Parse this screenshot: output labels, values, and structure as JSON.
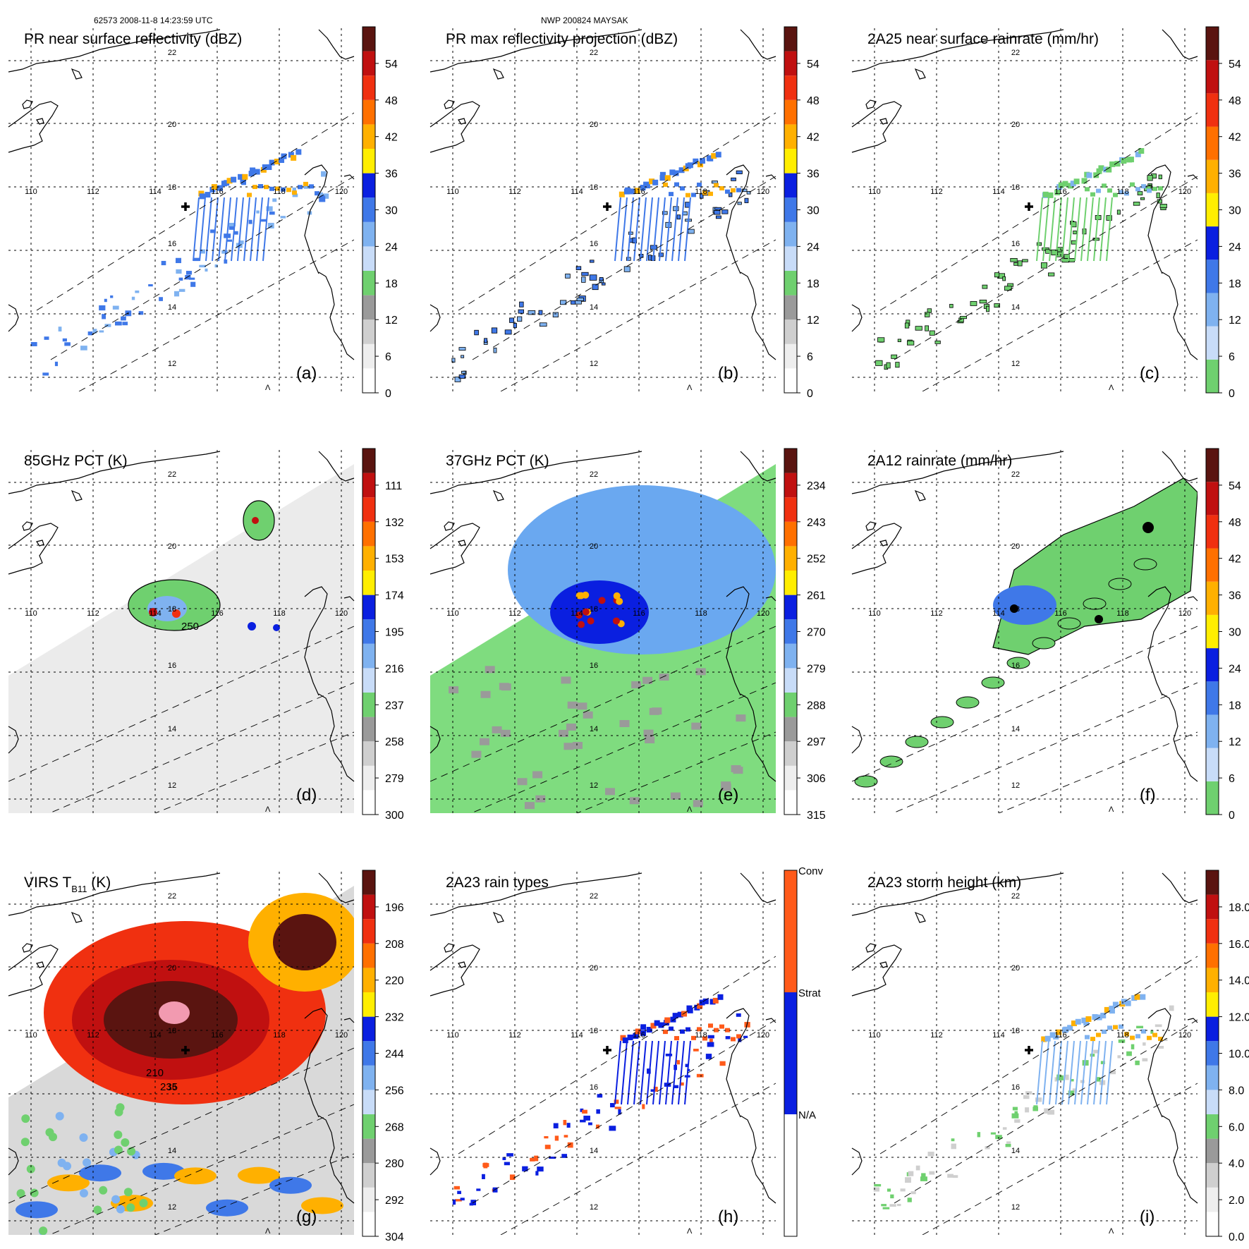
{
  "header": {
    "orbit_time": "62573 2008-11-8 14:23:59 UTC",
    "storm": "NWP 200824 MAYSAK"
  },
  "chart_data": [
    {
      "type": "heatmap",
      "title": "PR near surface reflectivity (dBZ)",
      "panel_label": "(a)",
      "field": "swath",
      "colorbar": {
        "ticks": [
          "0",
          "6",
          "12",
          "18",
          "24",
          "30",
          "36",
          "42",
          "48",
          "54"
        ],
        "colors": [
          "#ffffff",
          "#eeeeee",
          "#cfcfcf",
          "#9a9a9a",
          "#6fd06f",
          "#c8dcf8",
          "#7fb2f0",
          "#3f78e8",
          "#0a1fe0",
          "#ffee00",
          "#ffb000",
          "#ff7000",
          "#f03010",
          "#c01010",
          "#5a1410"
        ]
      },
      "lat_labels": [
        "22",
        "20",
        "18",
        "16",
        "14",
        "12"
      ],
      "lon_labels": [
        "110",
        "112",
        "114",
        "116",
        "118",
        "120"
      ],
      "show_center_cross": true,
      "extra_labels": [],
      "mark": "Λ"
    },
    {
      "type": "heatmap",
      "title": "PR max reflectivity projection (dBZ)",
      "panel_label": "(b)",
      "field": "swath",
      "colorbar": {
        "ticks": [
          "0",
          "6",
          "12",
          "18",
          "24",
          "30",
          "36",
          "42",
          "48",
          "54"
        ],
        "colors": [
          "#ffffff",
          "#eeeeee",
          "#cfcfcf",
          "#9a9a9a",
          "#6fd06f",
          "#c8dcf8",
          "#7fb2f0",
          "#3f78e8",
          "#0a1fe0",
          "#ffee00",
          "#ffb000",
          "#ff7000",
          "#f03010",
          "#c01010",
          "#5a1410"
        ]
      },
      "lat_labels": [
        "22",
        "20",
        "18",
        "16",
        "14",
        "12"
      ],
      "lon_labels": [
        "110",
        "112",
        "114",
        "116",
        "118",
        "120"
      ],
      "show_center_cross": true,
      "extra_labels": [],
      "mark": "Λ"
    },
    {
      "type": "heatmap",
      "title": "2A25 near surface rainrate (mm/hr)",
      "panel_label": "(c)",
      "field": "swath",
      "colorbar": {
        "ticks": [
          "0",
          "6",
          "12",
          "18",
          "24",
          "30",
          "36",
          "42",
          "48",
          "54"
        ],
        "colors": [
          "#6fd06f",
          "#c8dcf8",
          "#7fb2f0",
          "#3f78e8",
          "#0a1fe0",
          "#ffee00",
          "#ffb000",
          "#ff7000",
          "#f03010",
          "#c01010",
          "#5a1410"
        ]
      },
      "lat_labels": [
        "22",
        "20",
        "18",
        "16",
        "14",
        "12"
      ],
      "lon_labels": [
        "110",
        "112",
        "114",
        "116",
        "118",
        "120"
      ],
      "show_center_cross": true,
      "extra_labels": [],
      "mark": "Λ"
    },
    {
      "type": "heatmap",
      "title": "85GHz PCT (K)",
      "panel_label": "(d)",
      "field": "wide",
      "colorbar": {
        "ticks": [
          "300",
          "279",
          "258",
          "237",
          "216",
          "195",
          "174",
          "153",
          "132",
          "111"
        ],
        "colors": [
          "#ffffff",
          "#eeeeee",
          "#cfcfcf",
          "#9a9a9a",
          "#6fd06f",
          "#c8dcf8",
          "#7fb2f0",
          "#3f78e8",
          "#0a1fe0",
          "#ffee00",
          "#ffb000",
          "#ff7000",
          "#f03010",
          "#c01010",
          "#5a1410"
        ]
      },
      "lat_labels": [
        "22",
        "20",
        "18",
        "16",
        "14",
        "12"
      ],
      "lon_labels": [
        "110",
        "112",
        "114",
        "116",
        "118",
        "120"
      ],
      "show_center_cross": false,
      "extra_labels": [
        "250"
      ],
      "mark": "Λ"
    },
    {
      "type": "heatmap",
      "title": "37GHz PCT (K)",
      "panel_label": "(e)",
      "field": "wide",
      "colorbar": {
        "ticks": [
          "315",
          "306",
          "297",
          "288",
          "279",
          "270",
          "261",
          "252",
          "243",
          "234"
        ],
        "colors": [
          "#ffffff",
          "#eeeeee",
          "#cfcfcf",
          "#9a9a9a",
          "#6fd06f",
          "#c8dcf8",
          "#7fb2f0",
          "#3f78e8",
          "#0a1fe0",
          "#ffee00",
          "#ffb000",
          "#ff7000",
          "#f03010",
          "#c01010",
          "#5a1410"
        ]
      },
      "lat_labels": [
        "22",
        "20",
        "18",
        "16",
        "14",
        "12"
      ],
      "lon_labels": [
        "110",
        "112",
        "114",
        "116",
        "118",
        "120"
      ],
      "show_center_cross": false,
      "extra_labels": [],
      "mark": "Λ"
    },
    {
      "type": "heatmap",
      "title": "2A12 rainrate (mm/hr)",
      "panel_label": "(f)",
      "field": "wide",
      "colorbar": {
        "ticks": [
          "0",
          "6",
          "12",
          "18",
          "24",
          "30",
          "36",
          "42",
          "48",
          "54"
        ],
        "colors": [
          "#6fd06f",
          "#c8dcf8",
          "#7fb2f0",
          "#3f78e8",
          "#0a1fe0",
          "#ffee00",
          "#ffb000",
          "#ff7000",
          "#f03010",
          "#c01010",
          "#5a1410"
        ]
      },
      "lat_labels": [
        "22",
        "20",
        "18",
        "16",
        "14",
        "12"
      ],
      "lon_labels": [
        "110",
        "112",
        "114",
        "116",
        "118",
        "120"
      ],
      "show_center_cross": false,
      "extra_labels": [],
      "mark": "Λ"
    },
    {
      "type": "heatmap",
      "title": "VIRS T",
      "title_sub": "B11",
      "title_suffix": " (K)",
      "panel_label": "(g)",
      "field": "wide",
      "colorbar": {
        "ticks": [
          "304",
          "292",
          "280",
          "268",
          "256",
          "244",
          "232",
          "220",
          "208",
          "196"
        ],
        "colors": [
          "#ffffff",
          "#eeeeee",
          "#cfcfcf",
          "#9a9a9a",
          "#6fd06f",
          "#c8dcf8",
          "#7fb2f0",
          "#3f78e8",
          "#0a1fe0",
          "#ffee00",
          "#ffb000",
          "#ff7000",
          "#f03010",
          "#c01010",
          "#5a1410"
        ]
      },
      "lat_labels": [
        "22",
        "20",
        "18",
        "16",
        "14",
        "12"
      ],
      "lon_labels": [
        "110",
        "112",
        "114",
        "116",
        "118",
        "120"
      ],
      "show_center_cross": true,
      "extra_labels": [
        "210",
        "235"
      ],
      "mark": "Λ"
    },
    {
      "type": "heatmap",
      "title": "2A23 rain types",
      "panel_label": "(h)",
      "field": "swath",
      "colorbar": {
        "categorical": true,
        "ticks": [
          "N/A",
          "Strat",
          "Conv"
        ],
        "colors": [
          "#ffffff",
          "#0a1fe0",
          "#ff5a1a"
        ]
      },
      "lat_labels": [
        "22",
        "20",
        "18",
        "16",
        "14",
        "12"
      ],
      "lon_labels": [
        "110",
        "112",
        "114",
        "116",
        "118",
        "120"
      ],
      "show_center_cross": true,
      "extra_labels": [],
      "mark": "Λ"
    },
    {
      "type": "heatmap",
      "title": "2A23 storm height (km)",
      "panel_label": "(i)",
      "field": "swath",
      "colorbar": {
        "ticks": [
          "0.0",
          "2.0",
          "4.0",
          "6.0",
          "8.0",
          "10.0",
          "12.0",
          "14.0",
          "16.0",
          "18.0"
        ],
        "colors": [
          "#ffffff",
          "#eeeeee",
          "#cfcfcf",
          "#9a9a9a",
          "#6fd06f",
          "#c8dcf8",
          "#7fb2f0",
          "#3f78e8",
          "#0a1fe0",
          "#ffee00",
          "#ffb000",
          "#ff7000",
          "#f03010",
          "#c01010",
          "#5a1410"
        ]
      },
      "lat_labels": [
        "22",
        "20",
        "18",
        "16",
        "14",
        "12"
      ],
      "lon_labels": [
        "110",
        "112",
        "114",
        "116",
        "118",
        "120"
      ],
      "show_center_cross": true,
      "extra_labels": [],
      "mark": "Λ"
    }
  ]
}
